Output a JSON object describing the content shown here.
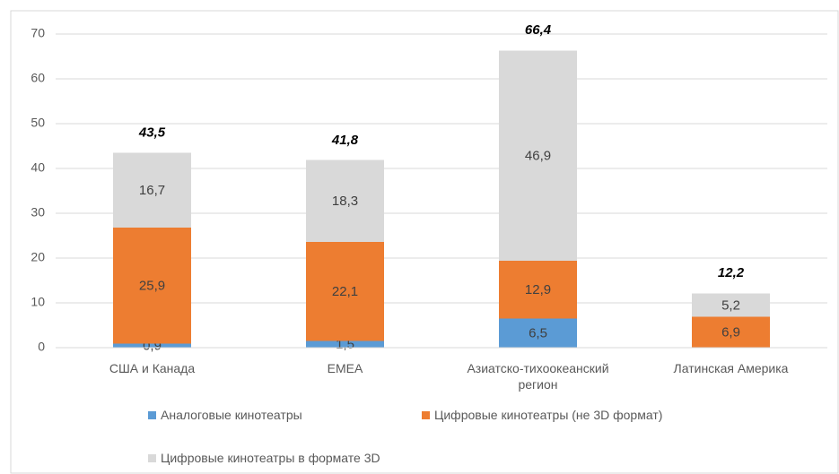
{
  "chart_data": {
    "type": "stacked_bar",
    "categories": [
      "США и Канада",
      "EMEA",
      "Азиатско-тихоокеанский регион",
      "Латинская Америка"
    ],
    "series": [
      {
        "name": "Аналоговые кинотеатры",
        "color": "#5b9bd5",
        "values": [
          0.9,
          1.5,
          6.5,
          null
        ],
        "value_labels": [
          "0,9",
          "1,5",
          "6,5",
          null
        ]
      },
      {
        "name": "Цифровые кинотеатры (не 3D формат)",
        "color": "#ed7d31",
        "values": [
          25.9,
          22.1,
          12.9,
          6.9
        ],
        "value_labels": [
          "25,9",
          "22,1",
          "12,9",
          "6,9"
        ]
      },
      {
        "name": "Цифровые кинотеатры в формате 3D",
        "color": "#d9d9d9",
        "values": [
          16.7,
          18.3,
          46.9,
          5.2
        ],
        "value_labels": [
          "16,7",
          "18,3",
          "46,9",
          "5,2"
        ]
      }
    ],
    "totals": {
      "values": [
        43.5,
        41.8,
        66.4,
        12.2
      ],
      "value_labels": [
        "43,5",
        "41,8",
        "66,4",
        "12,2"
      ]
    },
    "ylim": [
      0,
      70
    ],
    "yticks": [
      0,
      10,
      20,
      30,
      40,
      50,
      60,
      70
    ],
    "grid": true,
    "legend": "bottom"
  }
}
